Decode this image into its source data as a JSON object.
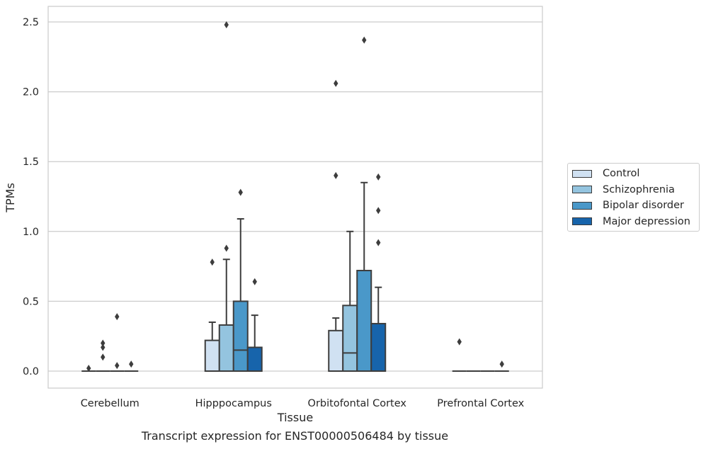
{
  "caption": "Transcript expression for ENST00000506484 by tissue",
  "chart_data": {
    "type": "box",
    "title": "",
    "xlabel": "Tissue",
    "ylabel": "TPMs",
    "ylim": [
      -0.12,
      2.61
    ],
    "yticks": [
      "0.0",
      "0.5",
      "1.0",
      "1.5",
      "2.0",
      "2.5"
    ],
    "grid": "horizontal",
    "legend_position": "right",
    "categories": [
      "Cerebellum",
      "Hipppocampus",
      "Orbitofontal Cortex",
      "Prefrontal Cortex"
    ],
    "series": [
      {
        "name": "Control",
        "color": "#d0e1f2",
        "boxes": [
          {
            "q1": 0,
            "median": 0,
            "q3": 0,
            "whisker_low": 0,
            "whisker_high": 0,
            "outliers": [
              0.02
            ]
          },
          {
            "q1": 0,
            "median": 0,
            "q3": 0.22,
            "whisker_low": 0,
            "whisker_high": 0.35,
            "outliers": [
              0.78
            ]
          },
          {
            "q1": 0,
            "median": 0,
            "q3": 0.29,
            "whisker_low": 0,
            "whisker_high": 0.38,
            "outliers": [
              1.4,
              2.06
            ]
          },
          {
            "q1": 0,
            "median": 0,
            "q3": 0,
            "whisker_low": 0,
            "whisker_high": 0,
            "outliers": [
              0.21
            ]
          }
        ]
      },
      {
        "name": "Schizophrenia",
        "color": "#94c4df",
        "boxes": [
          {
            "q1": 0,
            "median": 0,
            "q3": 0,
            "whisker_low": 0,
            "whisker_high": 0,
            "outliers": [
              0.1,
              0.17,
              0.2
            ]
          },
          {
            "q1": 0,
            "median": 0,
            "q3": 0.33,
            "whisker_low": 0,
            "whisker_high": 0.8,
            "outliers": [
              0.88,
              2.48
            ]
          },
          {
            "q1": 0,
            "median": 0.13,
            "q3": 0.47,
            "whisker_low": 0,
            "whisker_high": 1.0,
            "outliers": []
          },
          {
            "q1": 0,
            "median": 0,
            "q3": 0,
            "whisker_low": 0,
            "whisker_high": 0,
            "outliers": []
          }
        ]
      },
      {
        "name": "Bipolar disorder",
        "color": "#4a98c9",
        "boxes": [
          {
            "q1": 0,
            "median": 0,
            "q3": 0,
            "whisker_low": 0,
            "whisker_high": 0,
            "outliers": [
              0.04,
              0.39
            ]
          },
          {
            "q1": 0,
            "median": 0.15,
            "q3": 0.5,
            "whisker_low": 0,
            "whisker_high": 1.09,
            "outliers": [
              1.28
            ]
          },
          {
            "q1": 0,
            "median": 0,
            "q3": 0.72,
            "whisker_low": 0,
            "whisker_high": 1.35,
            "outliers": [
              2.37
            ]
          },
          {
            "q1": 0,
            "median": 0,
            "q3": 0,
            "whisker_low": 0,
            "whisker_high": 0,
            "outliers": []
          }
        ]
      },
      {
        "name": "Major depression",
        "color": "#1764ab",
        "boxes": [
          {
            "q1": 0,
            "median": 0,
            "q3": 0,
            "whisker_low": 0,
            "whisker_high": 0,
            "outliers": [
              0.05
            ]
          },
          {
            "q1": 0,
            "median": 0,
            "q3": 0.17,
            "whisker_low": 0,
            "whisker_high": 0.4,
            "outliers": [
              0.64
            ]
          },
          {
            "q1": 0,
            "median": 0,
            "q3": 0.34,
            "whisker_low": 0,
            "whisker_high": 0.6,
            "outliers": [
              0.92,
              1.15,
              1.39
            ]
          },
          {
            "q1": 0,
            "median": 0,
            "q3": 0,
            "whisker_low": 0,
            "whisker_high": 0,
            "outliers": [
              0.05
            ]
          }
        ]
      }
    ]
  }
}
